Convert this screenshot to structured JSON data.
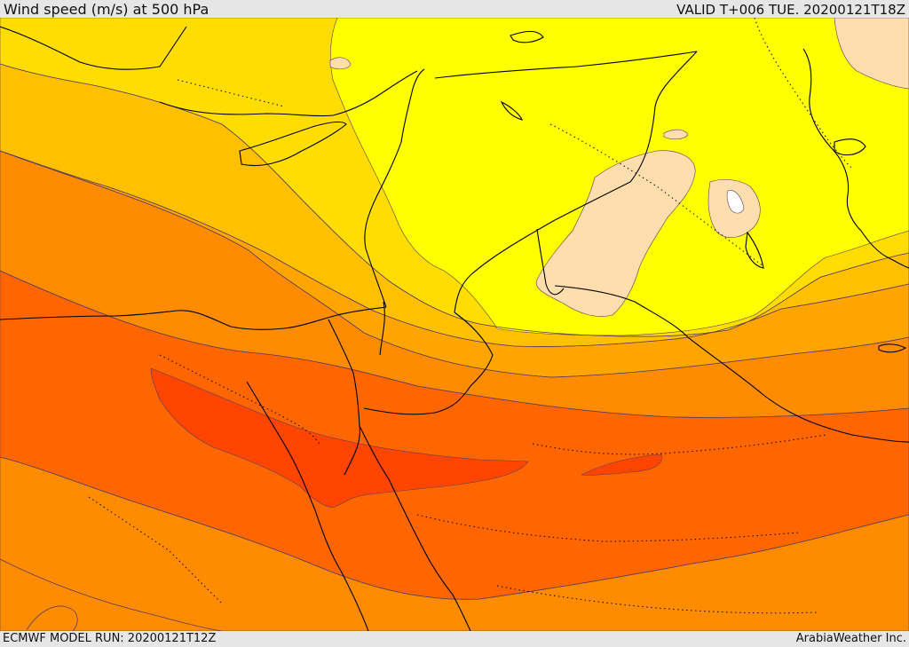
{
  "header": {
    "title": "Wind speed (m/s) at 500 hPa",
    "valid": "VALID T+006 TUE. 20200121T18Z"
  },
  "footer": {
    "model_run": "ECMWF MODEL RUN: 20200121T12Z",
    "credit": "ArabiaWeather Inc."
  },
  "colors": {
    "background": "#e6e6e6",
    "band_orange_light": "#ffa500",
    "band_orange": "#ff8c00",
    "band_orange_dark": "#ff6600",
    "band_red_orange": "#ff4500",
    "band_gold": "#ffc000",
    "band_yellow_gold": "#ffdd00",
    "band_yellow": "#ffff00",
    "band_wheat": "#ffdead",
    "band_white": "#ffffff",
    "coastline": "#000000",
    "contour": "#5a3c5a"
  }
}
